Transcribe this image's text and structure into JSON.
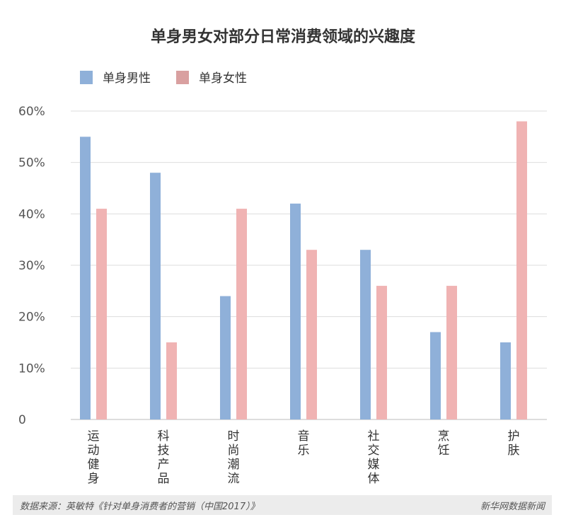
{
  "chart_data": {
    "type": "bar",
    "title": "单身男女对部分日常消费领域的兴趣度",
    "xlabel": "",
    "ylabel": "",
    "categories": [
      "运动健身",
      "科技产品",
      "时尚潮流",
      "音乐",
      "社交媒体",
      "烹饪",
      "护肤"
    ],
    "series": [
      {
        "name": "单身男性",
        "values": [
          55,
          48,
          24,
          42,
          33,
          17,
          15
        ],
        "color": "#8fb0d9"
      },
      {
        "name": "单身女性",
        "values": [
          41,
          15,
          41,
          33,
          26,
          26,
          58
        ],
        "color": "#f0b3b3"
      }
    ],
    "legend_colors": [
      "#8fb0d9",
      "#d9a0a0"
    ],
    "ylim": [
      0,
      60
    ],
    "yticks": [
      0,
      10,
      20,
      30,
      40,
      50,
      60
    ],
    "ytick_labels": [
      "0",
      "10%",
      "20%",
      "30%",
      "40%",
      "50%",
      "60%"
    ],
    "grid": true,
    "legend_position": "top-left"
  },
  "footer": {
    "source": "数据来源：英敏特《针对单身消费者的营销（中国2017）》",
    "brand": "新华网数据新闻"
  }
}
